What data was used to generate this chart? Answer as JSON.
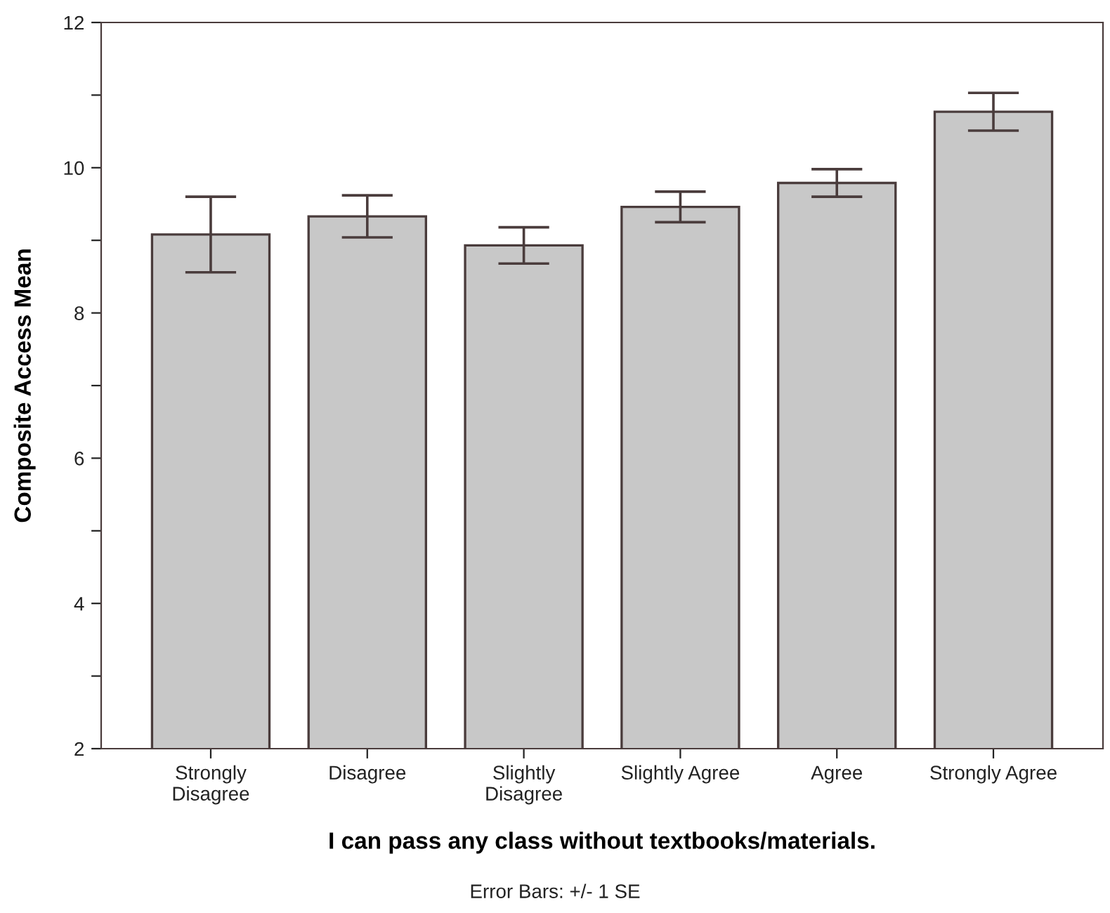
{
  "chart_data": {
    "type": "bar",
    "xlabel": "I can pass any class without textbooks/materials.",
    "ylabel": "Composite Access Mean",
    "categories": [
      "Strongly\nDisagree",
      "Disagree",
      "Slightly\nDisagree",
      "Slightly Agree",
      "Agree",
      "Strongly Agree"
    ],
    "values": [
      9.08,
      9.33,
      8.93,
      9.46,
      9.79,
      10.77
    ],
    "errors": [
      0.52,
      0.29,
      0.25,
      0.21,
      0.19,
      0.26
    ],
    "color": "#c8c8c8",
    "ylim": [
      2,
      12
    ],
    "yticks": [
      2,
      {
        "value": 3,
        "label": null
      },
      4,
      {
        "value": 5,
        "label": null
      },
      6,
      {
        "value": 7,
        "label": null
      },
      8,
      {
        "value": 9,
        "label": null
      },
      10,
      {
        "value": 11,
        "label": null
      },
      12
    ],
    "grid": false,
    "legend": false,
    "annotations": [
      "Error Bars: +/- 1 SE"
    ]
  }
}
